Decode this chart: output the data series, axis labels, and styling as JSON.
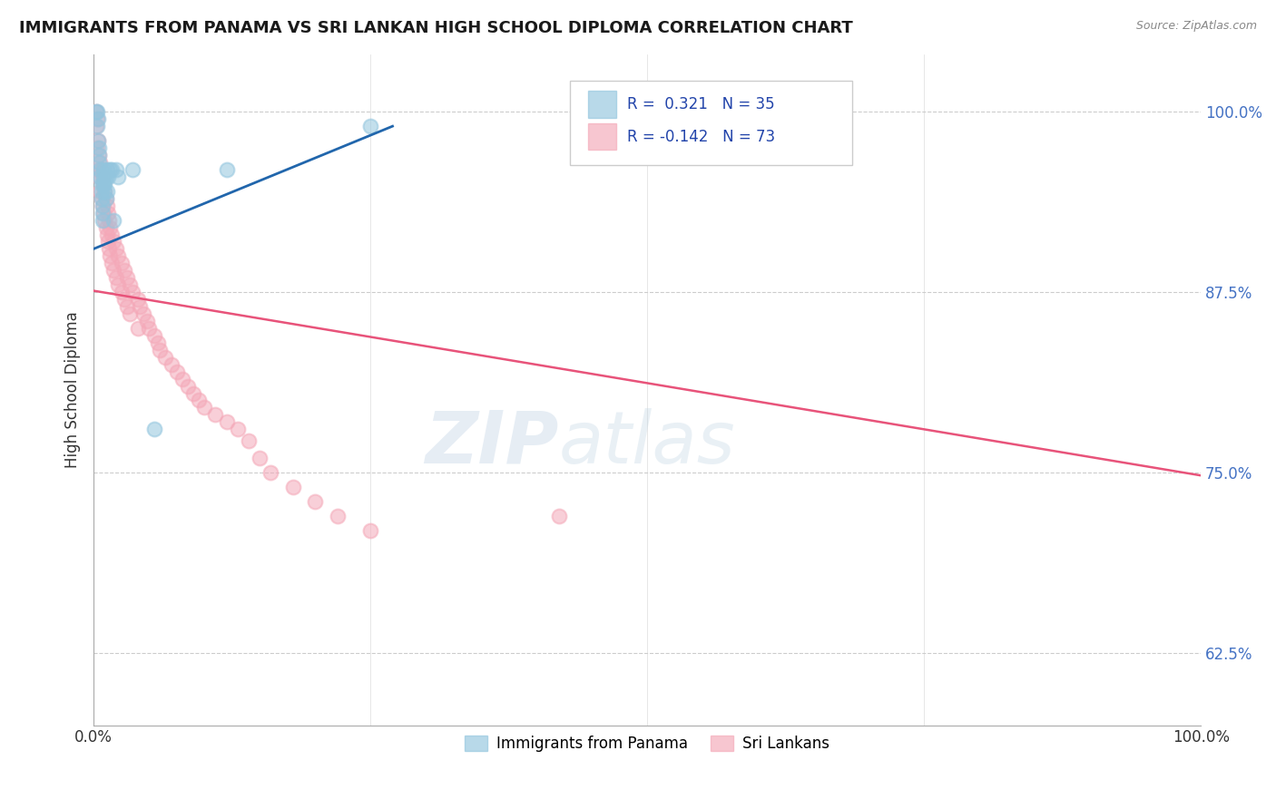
{
  "title": "IMMIGRANTS FROM PANAMA VS SRI LANKAN HIGH SCHOOL DIPLOMA CORRELATION CHART",
  "source": "Source: ZipAtlas.com",
  "ylabel": "High School Diploma",
  "xlim": [
    0.0,
    1.0
  ],
  "ylim": [
    0.575,
    1.04
  ],
  "yticks": [
    0.625,
    0.75,
    0.875,
    1.0
  ],
  "ytick_labels": [
    "62.5%",
    "75.0%",
    "87.5%",
    "100.0%"
  ],
  "blue_color": "#92c5de",
  "pink_color": "#f4a8b8",
  "blue_line_color": "#2166ac",
  "pink_line_color": "#e8537a",
  "blue_trend_x": [
    0.0,
    0.27
  ],
  "blue_trend_y": [
    0.905,
    0.99
  ],
  "pink_trend_x": [
    0.0,
    1.0
  ],
  "pink_trend_y": [
    0.876,
    0.748
  ],
  "panama_x": [
    0.002,
    0.003,
    0.003,
    0.004,
    0.004,
    0.005,
    0.005,
    0.005,
    0.006,
    0.006,
    0.007,
    0.007,
    0.007,
    0.008,
    0.008,
    0.008,
    0.009,
    0.009,
    0.009,
    0.01,
    0.01,
    0.011,
    0.011,
    0.012,
    0.012,
    0.013,
    0.015,
    0.016,
    0.018,
    0.02,
    0.022,
    0.035,
    0.055,
    0.12,
    0.25
  ],
  "panama_y": [
    1.0,
    1.0,
    0.99,
    0.995,
    0.98,
    0.975,
    0.97,
    0.965,
    0.96,
    0.955,
    0.95,
    0.945,
    0.94,
    0.935,
    0.93,
    0.925,
    0.955,
    0.96,
    0.95,
    0.95,
    0.945,
    0.955,
    0.94,
    0.96,
    0.945,
    0.955,
    0.96,
    0.96,
    0.925,
    0.96,
    0.955,
    0.96,
    0.78,
    0.96,
    0.99
  ],
  "srilanka_x": [
    0.002,
    0.002,
    0.003,
    0.003,
    0.004,
    0.004,
    0.005,
    0.005,
    0.006,
    0.006,
    0.007,
    0.007,
    0.008,
    0.008,
    0.009,
    0.009,
    0.01,
    0.01,
    0.011,
    0.011,
    0.012,
    0.012,
    0.013,
    0.013,
    0.014,
    0.014,
    0.015,
    0.015,
    0.016,
    0.016,
    0.018,
    0.018,
    0.02,
    0.02,
    0.022,
    0.022,
    0.025,
    0.025,
    0.028,
    0.028,
    0.03,
    0.03,
    0.033,
    0.033,
    0.035,
    0.04,
    0.04,
    0.042,
    0.045,
    0.048,
    0.05,
    0.055,
    0.058,
    0.06,
    0.065,
    0.07,
    0.075,
    0.08,
    0.085,
    0.09,
    0.095,
    0.1,
    0.11,
    0.12,
    0.13,
    0.14,
    0.15,
    0.16,
    0.18,
    0.2,
    0.22,
    0.25,
    0.42
  ],
  "srilanka_y": [
    1.0,
    0.99,
    0.995,
    0.975,
    0.98,
    0.96,
    0.97,
    0.955,
    0.965,
    0.945,
    0.96,
    0.94,
    0.955,
    0.935,
    0.95,
    0.93,
    0.945,
    0.925,
    0.94,
    0.92,
    0.935,
    0.915,
    0.93,
    0.91,
    0.925,
    0.905,
    0.92,
    0.9,
    0.915,
    0.895,
    0.91,
    0.89,
    0.905,
    0.885,
    0.9,
    0.88,
    0.895,
    0.875,
    0.89,
    0.87,
    0.885,
    0.865,
    0.88,
    0.86,
    0.875,
    0.87,
    0.85,
    0.865,
    0.86,
    0.855,
    0.85,
    0.845,
    0.84,
    0.835,
    0.83,
    0.825,
    0.82,
    0.815,
    0.81,
    0.805,
    0.8,
    0.795,
    0.79,
    0.785,
    0.78,
    0.772,
    0.76,
    0.75,
    0.74,
    0.73,
    0.72,
    0.71,
    0.72
  ]
}
